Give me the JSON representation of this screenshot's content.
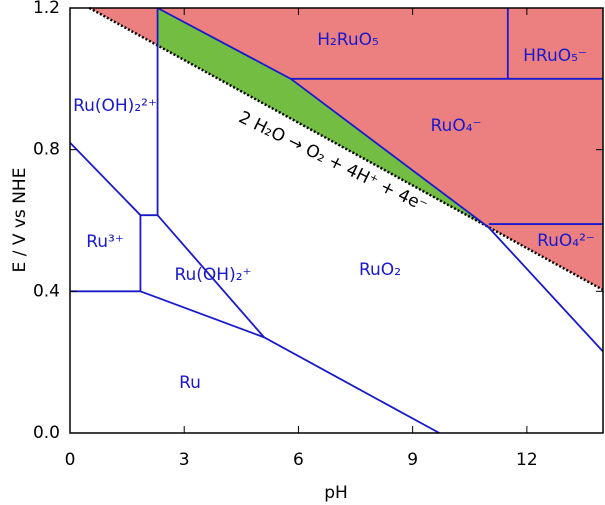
{
  "chart_data": {
    "type": "pourbaix",
    "xlabel": "pH",
    "ylabel": "E / V vs NHE",
    "xlim": [
      0,
      14
    ],
    "xticks": [
      0,
      3,
      6,
      9,
      12
    ],
    "ylim": [
      0,
      1.2
    ],
    "yticks": [
      {
        "value": 0,
        "label": "0.0"
      },
      0.4,
      0.8,
      1.2
    ],
    "line_color": "#1a1acc",
    "regions": [
      {
        "color": "#ec8080",
        "x": [
          0.51,
          14,
          14
        ],
        "y": [
          1.2,
          1.2,
          0.404
        ]
      },
      {
        "color": "#72bd42",
        "x": [
          2.3,
          5.8,
          11,
          2.3
        ],
        "y": [
          1.2,
          1.0,
          0.58,
          1.094
        ]
      }
    ],
    "water_line": {
      "x": [
        0.51,
        14
      ],
      "y": [
        1.2,
        0.404
      ]
    },
    "boundaries": [
      {
        "x": [
          0,
          1.85
        ],
        "y": [
          0.4,
          0.4
        ]
      },
      {
        "x": [
          1.85,
          1.85,
          2.3
        ],
        "y": [
          0.4,
          0.615,
          0.615
        ]
      },
      {
        "x": [
          0,
          1.85
        ],
        "y": [
          0.82,
          0.615
        ]
      },
      {
        "x": [
          2.3,
          2.3
        ],
        "y": [
          0.615,
          1.2
        ]
      },
      {
        "x": [
          2.3,
          5.1
        ],
        "y": [
          0.615,
          0.27
        ]
      },
      {
        "x": [
          1.85,
          5.1,
          9.7
        ],
        "y": [
          0.4,
          0.27,
          0
        ]
      },
      {
        "x": [
          2.3,
          5.8,
          11,
          14
        ],
        "y": [
          1.2,
          1.0,
          0.58,
          0.23
        ]
      },
      {
        "x": [
          5.8,
          14
        ],
        "y": [
          1.0,
          1.0
        ]
      },
      {
        "x": [
          11.5,
          11.5
        ],
        "y": [
          1.2,
          1.0
        ]
      },
      {
        "x": [
          11,
          14
        ],
        "y": [
          0.59,
          0.59
        ]
      }
    ],
    "labels": [
      "H₂RuO₅",
      "HRuO₅⁻",
      "RuO₄⁻",
      "RuO₄²⁻",
      "Ru(OH)₂²⁺",
      "Ru³⁺",
      "Ru(OH)₂⁺",
      "RuO₂",
      "Ru"
    ],
    "reaction": "2 H₂O → O₂ + 4H⁺ + 4e⁻"
  }
}
